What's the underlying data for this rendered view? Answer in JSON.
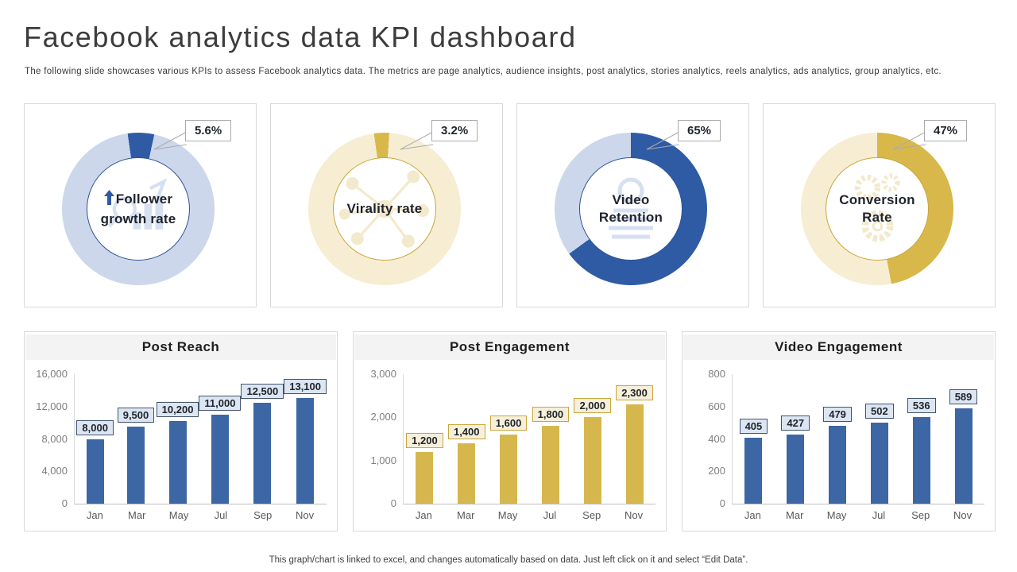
{
  "page": {
    "title": "Facebook analytics data KPI dashboard",
    "subtitle": "The following slide showcases various KPIs to assess Facebook analytics data. The metrics are page analytics, audience insights, post analytics, stories analytics, reels analytics, ads analytics, group analytics, etc.",
    "footer": "This graph/chart is linked to excel, and changes automatically based on data. Just left click on it and select “Edit Data”."
  },
  "colors": {
    "blue": {
      "seg": "#2F5BA4",
      "ring": "#CCD7EC",
      "bar": "#3C66A4",
      "label_bg": "#DCE6F2",
      "label_border": "#44546A",
      "hole_border": "#2F5597",
      "watermark": "#AEC3E3"
    },
    "gold": {
      "seg": "#D8B84A",
      "ring": "#F6EDD3",
      "bar": "#D6B74D",
      "label_bg": "#F6EFDA",
      "label_border": "#C9A63C",
      "hole_border": "#C9A63C",
      "watermark": "#E8D49A"
    }
  },
  "chart_data": [
    {
      "type": "donut",
      "title": "Follower growth rate",
      "annotation": "5.6%",
      "percent": 5.6,
      "values": [
        5.6,
        94.4
      ],
      "theme": "blue",
      "icon": "bar-chart-watermark-icon",
      "arrow_icon": true
    },
    {
      "type": "donut",
      "title": "Virality rate",
      "annotation": "3.2%",
      "percent": 3.2,
      "values": [
        3.2,
        96.8
      ],
      "theme": "gold",
      "icon": "network-watermark-icon",
      "arrow_icon": false
    },
    {
      "type": "donut",
      "title": "Video Retention",
      "annotation": "65%",
      "percent": 65,
      "values": [
        65,
        35
      ],
      "theme": "blue",
      "icon": "coins-watermark-icon",
      "arrow_icon": false
    },
    {
      "type": "donut",
      "title": "Conversion Rate",
      "annotation": "47%",
      "percent": 47,
      "values": [
        47,
        53
      ],
      "theme": "gold",
      "icon": "gears-watermark-icon",
      "arrow_icon": false
    },
    {
      "type": "bar",
      "title": "Post Reach",
      "categories": [
        "Jan",
        "Mar",
        "May",
        "Jul",
        "Sep",
        "Nov"
      ],
      "values": [
        8000,
        9500,
        10200,
        11000,
        12500,
        13100
      ],
      "value_labels": [
        "8,000",
        "9,500",
        "10,200",
        "11,000",
        "12,500",
        "13,100"
      ],
      "yticks": [
        "0",
        "4,000",
        "8,000",
        "12,000",
        "16,000"
      ],
      "ylim": [
        0,
        16000
      ],
      "theme": "blue",
      "grid": false,
      "data_labels": "boxed"
    },
    {
      "type": "bar",
      "title": "Post Engagement",
      "categories": [
        "Jan",
        "Mar",
        "May",
        "Jul",
        "Sep",
        "Nov"
      ],
      "values": [
        1200,
        1400,
        1600,
        1800,
        2000,
        2300
      ],
      "value_labels": [
        "1,200",
        "1,400",
        "1,600",
        "1,800",
        "2,000",
        "2,300"
      ],
      "yticks": [
        "0",
        "1,000",
        "2,000",
        "3,000"
      ],
      "ylim": [
        0,
        3000
      ],
      "theme": "gold",
      "grid": false,
      "data_labels": "boxed"
    },
    {
      "type": "bar",
      "title": "Video Engagement",
      "categories": [
        "Jan",
        "Mar",
        "May",
        "Jul",
        "Sep",
        "Nov"
      ],
      "values": [
        405,
        427,
        479,
        502,
        536,
        589
      ],
      "value_labels": [
        "405",
        "427",
        "479",
        "502",
        "536",
        "589"
      ],
      "yticks": [
        "0",
        "200",
        "400",
        "600",
        "800"
      ],
      "ylim": [
        0,
        800
      ],
      "theme": "blue",
      "grid": false,
      "data_labels": "boxed"
    }
  ]
}
